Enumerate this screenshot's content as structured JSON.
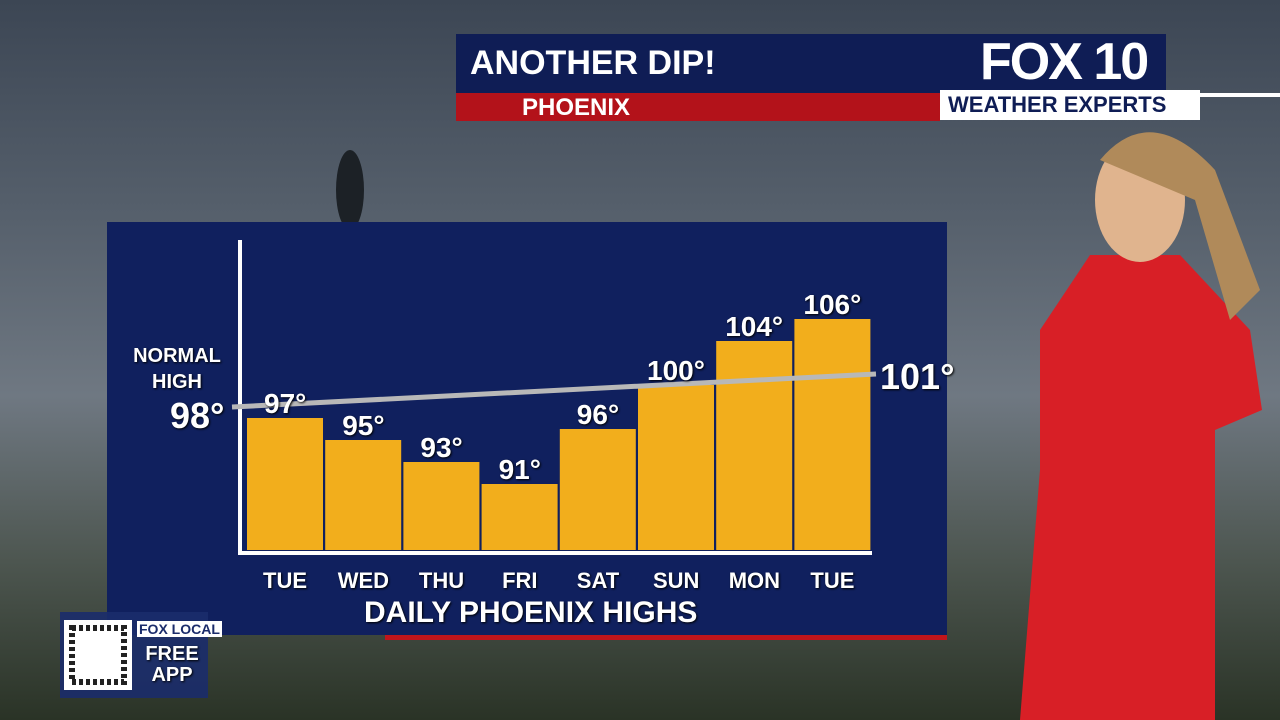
{
  "header": {
    "title": "ANOTHER DIP!",
    "location": "PHOENIX",
    "logo": "FOX 10",
    "logo_sub": "WEATHER EXPERTS"
  },
  "app_promo": {
    "brand": "FOX LOCAL",
    "text": "FREE APP"
  },
  "chart_data": {
    "type": "bar",
    "title": "DAILY PHOENIX HIGHS",
    "categories": [
      "TUE",
      "WED",
      "THU",
      "FRI",
      "SAT",
      "SUN",
      "MON",
      "TUE"
    ],
    "values": [
      97,
      95,
      93,
      91,
      96,
      100,
      104,
      106
    ],
    "value_labels": [
      "97°",
      "95°",
      "93°",
      "91°",
      "96°",
      "100°",
      "104°",
      "106°"
    ],
    "color": "#f2ae1c",
    "ylim": [
      85,
      113
    ],
    "reference_line": {
      "name": "NORMAL HIGH",
      "values": [
        98,
        101
      ],
      "value_labels": [
        "98°",
        "101°"
      ],
      "color": "#b8b8b8"
    }
  }
}
